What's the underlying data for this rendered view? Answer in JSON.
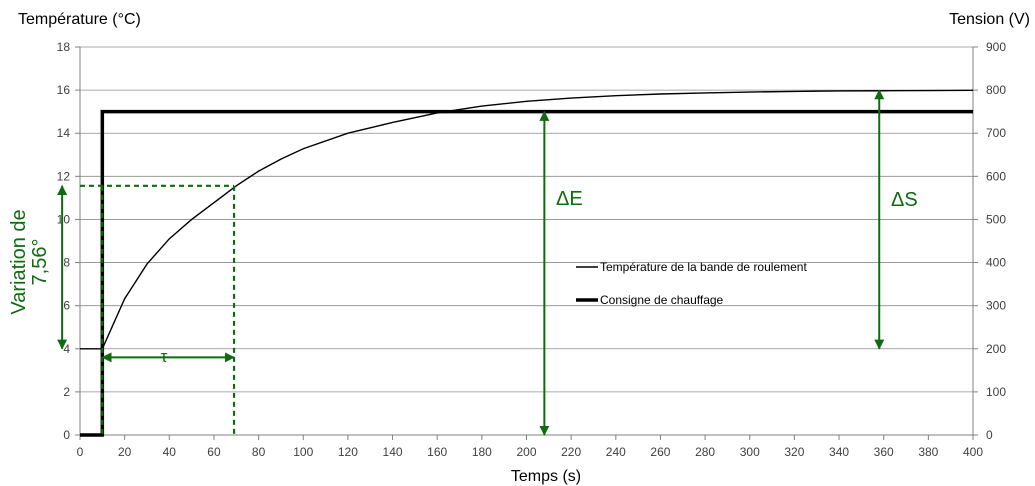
{
  "chart_data": {
    "type": "line",
    "ylabel": "Température (°C)",
    "y2label": "Tension (V)",
    "xlabel": "Temps (s)",
    "xlim": [
      0,
      400
    ],
    "ylim": [
      0,
      18
    ],
    "y2lim": [
      0,
      900
    ],
    "grid": true,
    "legend_position": "center-right",
    "x_ticks": [
      "0",
      "20",
      "40",
      "60",
      "80",
      "100",
      "120",
      "140",
      "160",
      "180",
      "200",
      "220",
      "240",
      "260",
      "280",
      "300",
      "320",
      "340",
      "360",
      "380",
      "400"
    ],
    "y_ticks": [
      "0",
      "2",
      "4",
      "6",
      "8",
      "10",
      "12",
      "14",
      "16",
      "18"
    ],
    "y2_ticks": [
      "0",
      "100",
      "200",
      "300",
      "400",
      "500",
      "600",
      "700",
      "800",
      "900"
    ],
    "series": [
      {
        "name": "Température de la bande de roulement",
        "axis": "left",
        "color": "#000000",
        "x": [
          0,
          10,
          20,
          30,
          40,
          50,
          60,
          70,
          80,
          90,
          100,
          120,
          140,
          160,
          180,
          200,
          220,
          240,
          260,
          280,
          300,
          320,
          340,
          360,
          380,
          400
        ],
        "y": [
          4.0,
          4.0,
          6.32,
          7.93,
          9.1,
          10.0,
          10.78,
          11.56,
          12.24,
          12.8,
          13.28,
          14.0,
          14.5,
          14.94,
          15.26,
          15.48,
          15.63,
          15.74,
          15.82,
          15.87,
          15.91,
          15.94,
          15.96,
          15.97,
          15.98,
          15.99
        ]
      },
      {
        "name": "Consigne de chauffage",
        "axis": "right",
        "color": "#000000",
        "x": [
          0,
          10,
          10,
          400
        ],
        "y": [
          0,
          0,
          750,
          750
        ]
      }
    ],
    "annotations": {
      "color": "#0f6b0f",
      "tau_label": "τ",
      "tau_x_range": [
        10,
        69
      ],
      "tau_at_y": 3.6,
      "delta_e_label": "ΔE",
      "delta_e_x": 208,
      "delta_e_range": [
        0,
        15
      ],
      "delta_s_label": "ΔS",
      "delta_s_x": 358,
      "delta_s_range": [
        4,
        16
      ],
      "variation_label_line1": "Variation de",
      "variation_label_line2": "7,56°",
      "variation_x": -8,
      "variation_range": [
        4,
        11.56
      ],
      "dashed_level_y": 11.56,
      "dashed_time_x": 69
    }
  }
}
